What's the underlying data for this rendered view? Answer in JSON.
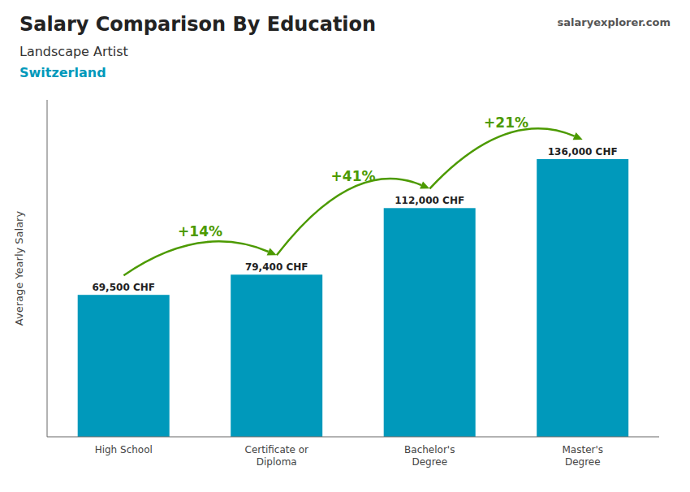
{
  "chart_data": {
    "type": "bar",
    "title": "Salary Comparison By Education",
    "subtitle": "Landscape Artist",
    "ylabel": "Average Yearly Salary",
    "categories": [
      "High School",
      "Certificate or\nDiploma",
      "Bachelor's\nDegree",
      "Master's\nDegree"
    ],
    "values": [
      69500,
      79400,
      112000,
      136000
    ],
    "value_labels": [
      "69,500 CHF",
      "79,400 CHF",
      "112,000 CHF",
      "136,000 CHF"
    ],
    "data_labels": true,
    "color": "#0099bb",
    "ylim": [
      0,
      165000
    ],
    "grid": false,
    "tick_labels": "x",
    "annotations": [
      {
        "text": "Switzerland"
      },
      {
        "text": "salaryexplorer.com"
      },
      {
        "text": "+14%",
        "from": "High School",
        "to": "Certificate or\nDiploma"
      },
      {
        "text": "+41%",
        "from": "Certificate or\nDiploma",
        "to": "Bachelor's\nDegree"
      },
      {
        "text": "+21%",
        "from": "Bachelor's\nDegree",
        "to": "Master's\nDegree"
      }
    ]
  }
}
